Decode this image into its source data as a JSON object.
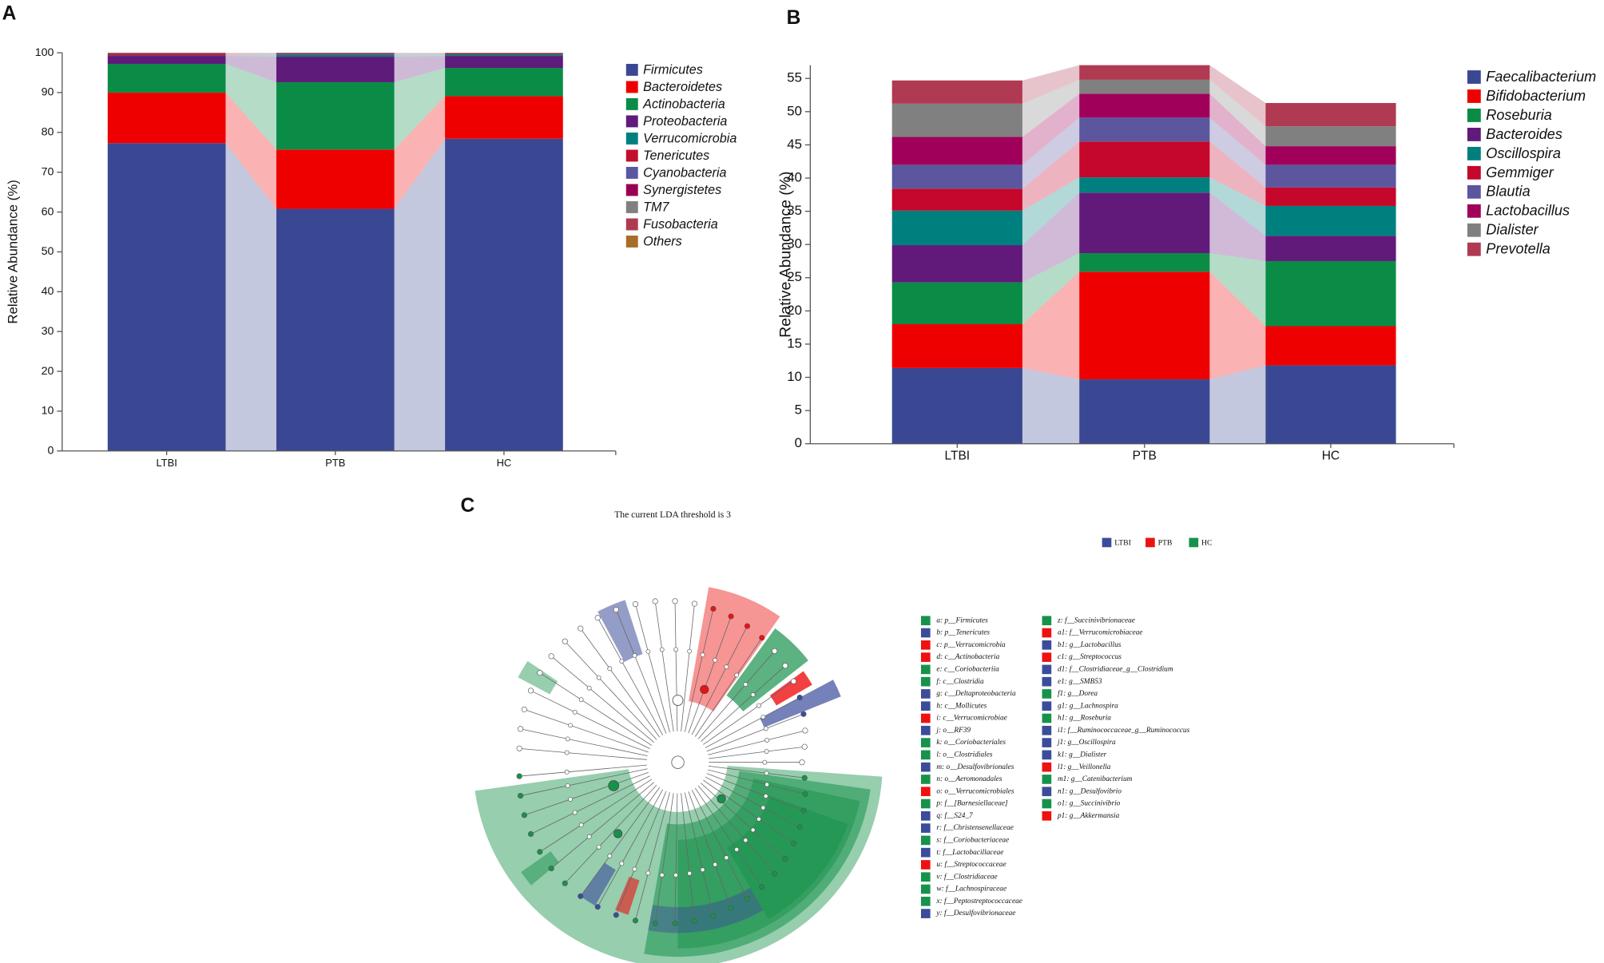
{
  "chart_data": [
    {
      "type": "bar",
      "stacked": true,
      "panel": "A",
      "ylabel": "Relative Abundance (%)",
      "categories": [
        "LTBI",
        "PTB",
        "HC"
      ],
      "ylim": [
        0,
        100
      ],
      "yticks": [
        0,
        10,
        20,
        30,
        40,
        50,
        60,
        70,
        80,
        90,
        100
      ],
      "series": [
        {
          "name": "Firmicutes",
          "color": "#3a4893",
          "values": [
            77.3,
            60.8,
            78.4
          ]
        },
        {
          "name": "Bacteroidetes",
          "color": "#ee0000",
          "values": [
            12.7,
            14.9,
            10.7
          ]
        },
        {
          "name": "Actinobacteria",
          "color": "#0a8c46",
          "values": [
            7.2,
            16.9,
            7.1
          ]
        },
        {
          "name": "Proteobacteria",
          "color": "#5e1b7a",
          "values": [
            2.0,
            6.4,
            3.0
          ]
        },
        {
          "name": "Verrucomicrobia",
          "color": "#007f7f",
          "values": [
            0.1,
            0.5,
            0.4
          ]
        },
        {
          "name": "Tenericutes",
          "color": "#c40e2e",
          "values": [
            0.4,
            0.1,
            0.2
          ]
        },
        {
          "name": "Cyanobacteria",
          "color": "#5a57a0",
          "values": [
            0.1,
            0.2,
            0.1
          ]
        },
        {
          "name": "Synergistetes",
          "color": "#9a0052",
          "values": [
            0.1,
            0.1,
            0
          ]
        },
        {
          "name": "TM7",
          "color": "#808080",
          "values": [
            0,
            0,
            0
          ]
        },
        {
          "name": "Fusobacteria",
          "color": "#b03a50",
          "values": [
            0,
            0,
            0
          ]
        },
        {
          "name": "Others",
          "color": "#a66e28",
          "values": [
            0.1,
            0.1,
            0.1
          ]
        }
      ]
    },
    {
      "type": "bar",
      "stacked": true,
      "panel": "B",
      "ylabel": "Relative Abundance (%)",
      "categories": [
        "LTBI",
        "PTB",
        "HC"
      ],
      "ylim": [
        0,
        57
      ],
      "yticks": [
        0,
        5,
        10,
        15,
        20,
        25,
        30,
        35,
        40,
        45,
        50,
        55
      ],
      "series": [
        {
          "name": "Faecalibacterium",
          "color": "#3a4893",
          "values": [
            11.4,
            9.7,
            11.8
          ]
        },
        {
          "name": "Bifidobacterium",
          "color": "#ee0000",
          "values": [
            6.6,
            16.2,
            5.9
          ]
        },
        {
          "name": "Roseburia",
          "color": "#0a8c46",
          "values": [
            6.3,
            2.8,
            9.8
          ]
        },
        {
          "name": "Bacteroides",
          "color": "#621a7a",
          "values": [
            5.6,
            9.1,
            3.8
          ]
        },
        {
          "name": "Oscillospira",
          "color": "#007f7f",
          "values": [
            5.2,
            2.3,
            4.5
          ]
        },
        {
          "name": "Gemmiger",
          "color": "#c4072a",
          "values": [
            3.3,
            5.4,
            2.8
          ]
        },
        {
          "name": "Blautia",
          "color": "#5b569e",
          "values": [
            3.6,
            3.6,
            3.4
          ]
        },
        {
          "name": "Lactobacillus",
          "color": "#a0005a",
          "values": [
            4.2,
            3.6,
            2.8
          ]
        },
        {
          "name": "Dialister",
          "color": "#808080",
          "values": [
            5.0,
            2.1,
            3.0
          ]
        },
        {
          "name": "Prevotella",
          "color": "#b03a52",
          "values": [
            3.5,
            2.2,
            3.5
          ]
        }
      ]
    }
  ],
  "cladogram": {
    "panel": "C",
    "title": "The current LDA threshold is 3",
    "groups": [
      {
        "name": "LTBI",
        "color": "#3b4c9b"
      },
      {
        "name": "PTB",
        "color": "#ee1111"
      },
      {
        "name": "HC",
        "color": "#17924b"
      }
    ],
    "keys": [
      {
        "text": "a: p__Firmicutes",
        "color": "#17924b"
      },
      {
        "text": "b: p__Tenericutes",
        "color": "#3b4c9b"
      },
      {
        "text": "c: p__Verrucomicrobia",
        "color": "#ee1111"
      },
      {
        "text": "d: c__Actinobacteria",
        "color": "#ee1111"
      },
      {
        "text": "e: c__Coriobacteriia",
        "color": "#17924b"
      },
      {
        "text": "f: c__Clostridia",
        "color": "#17924b"
      },
      {
        "text": "g: c__Deltaproteobacteria",
        "color": "#3b4c9b"
      },
      {
        "text": "h: c__Mollicutes",
        "color": "#3b4c9b"
      },
      {
        "text": "i: c__Verrucomicrobiae",
        "color": "#ee1111"
      },
      {
        "text": "j: o__RF39",
        "color": "#3b4c9b"
      },
      {
        "text": "k: o__Coriobacteriales",
        "color": "#17924b"
      },
      {
        "text": "l: o__Clostridiales",
        "color": "#17924b"
      },
      {
        "text": "m: o__Desulfovibrionales",
        "color": "#3b4c9b"
      },
      {
        "text": "n: o__Aeromonadales",
        "color": "#17924b"
      },
      {
        "text": "o: o__Verrucomicrobiales",
        "color": "#ee1111"
      },
      {
        "text": "p: f__[Barnesiellaceae]",
        "color": "#17924b"
      },
      {
        "text": "q: f__S24_7",
        "color": "#3b4c9b"
      },
      {
        "text": "r: f__Christensenellaceae",
        "color": "#3b4c9b"
      },
      {
        "text": "s: f__Coriobacteriaceae",
        "color": "#17924b"
      },
      {
        "text": "t: f__Lactobacillaceae",
        "color": "#3b4c9b"
      },
      {
        "text": "u: f__Streptococcaceae",
        "color": "#ee1111"
      },
      {
        "text": "v: f__Clostridiaceae",
        "color": "#17924b"
      },
      {
        "text": "w: f__Lachnospiraceae",
        "color": "#17924b"
      },
      {
        "text": "x: f__Peptostreptococcaceae",
        "color": "#17924b"
      },
      {
        "text": "y: f__Desulfovibrionaceae",
        "color": "#3b4c9b"
      },
      {
        "text": "z: f__Succinivibrionaceae",
        "color": "#17924b"
      },
      {
        "text": "a1: f__Verrucomicrobiaceae",
        "color": "#ee1111"
      },
      {
        "text": "b1: g__Lactobacillus",
        "color": "#3b4c9b"
      },
      {
        "text": "c1: g__Streptococcus",
        "color": "#ee1111"
      },
      {
        "text": "d1: f__Clostridiaceae_g__Clostridium",
        "color": "#3b4c9b"
      },
      {
        "text": "e1: g__SMB53",
        "color": "#3b4c9b"
      },
      {
        "text": "f1: g__Dorea",
        "color": "#17924b"
      },
      {
        "text": "g1: g__Lachnospira",
        "color": "#3b4c9b"
      },
      {
        "text": "h1: g__Roseburia",
        "color": "#17924b"
      },
      {
        "text": "i1: f__Ruminococcaceae_g__Ruminococcus",
        "color": "#3b4c9b"
      },
      {
        "text": "j1: g__Oscillospira",
        "color": "#3b4c9b"
      },
      {
        "text": "k1: g__Dialister",
        "color": "#3b4c9b"
      },
      {
        "text": "l1: g__Veillonella",
        "color": "#ee1111"
      },
      {
        "text": "m1: g__Catenibacterium",
        "color": "#17924b"
      },
      {
        "text": "n1: g__Desulfovibrio",
        "color": "#3b4c9b"
      },
      {
        "text": "o1: g__Succinivibrio",
        "color": "#17924b"
      },
      {
        "text": "p1: g__Akkermansia",
        "color": "#ee1111"
      }
    ]
  }
}
